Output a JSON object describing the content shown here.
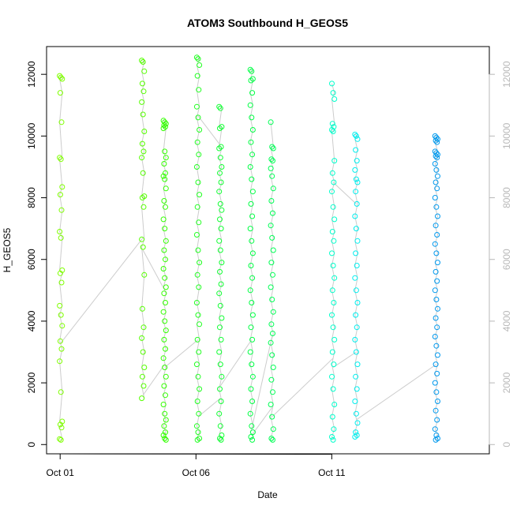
{
  "chart_data": {
    "type": "scatter",
    "title": "ATOM3 Southbound H_GEOS5",
    "xlabel": "Date",
    "ylabel": "H_GEOS5",
    "x_unit": "days since Oct 01",
    "xlim": [
      -0.5,
      15.8
    ],
    "ylim": [
      -300,
      12900
    ],
    "x_ticks": [
      {
        "value": 0,
        "label": "Oct 01"
      },
      {
        "value": 5,
        "label": "Oct 06"
      },
      {
        "value": 10,
        "label": "Oct 11"
      }
    ],
    "y_ticks": [
      {
        "value": 0,
        "label": "0"
      },
      {
        "value": 2000,
        "label": "2000"
      },
      {
        "value": 4000,
        "label": "4000"
      },
      {
        "value": 6000,
        "label": "6000"
      },
      {
        "value": 8000,
        "label": "8000"
      },
      {
        "value": 10000,
        "label": "10000"
      },
      {
        "value": 12000,
        "label": "12000"
      }
    ],
    "right_axis": {
      "color": "#b8b8b8",
      "ticks": [
        0,
        2000,
        4000,
        6000,
        8000,
        10000,
        12000
      ]
    },
    "grid": false,
    "legend": "none",
    "connector_color": "#cccccc",
    "marker": "open-circle",
    "profiles": [
      {
        "x": 0.03,
        "color": "#7fff00",
        "y": [
          11950,
          11900,
          11850,
          11400,
          10450,
          9300,
          9250,
          8350,
          8100,
          7600,
          6900,
          6700,
          5650,
          5550,
          5250,
          4500,
          4200,
          3850,
          3350,
          3100,
          2700,
          1700,
          750,
          650,
          550,
          180,
          150
        ]
      },
      {
        "x": 3.05,
        "color": "#55ff00",
        "y": [
          12450,
          12400,
          12100,
          11700,
          11450,
          11100,
          10700,
          10150,
          9750,
          9500,
          9300,
          8800,
          8050,
          8000,
          7700,
          6650,
          6400,
          5500,
          4400,
          3800,
          3450,
          3000,
          2500,
          2200,
          1900,
          1500
        ]
      },
      {
        "x": 3.85,
        "color": "#33ff00",
        "y": [
          10500,
          10450,
          10400,
          10350,
          10300,
          10250,
          9500,
          9300,
          9100,
          8800,
          8700,
          8600,
          8300,
          7900,
          7700,
          7300,
          7000,
          6600,
          6300,
          6000,
          5700,
          5400,
          5100,
          4900,
          4600,
          4300,
          4000,
          3700,
          3400,
          3100,
          2800,
          2500,
          2200,
          1900,
          1600,
          1300,
          1000,
          800,
          600,
          400,
          300,
          200,
          150
        ]
      },
      {
        "x": 5.08,
        "color": "#22ff22",
        "y": [
          12550,
          12500,
          12300,
          11950,
          11500,
          10950,
          10600,
          10200,
          9800,
          9400,
          9000,
          8500,
          8100,
          7700,
          7200,
          6800,
          6300,
          5900,
          5500,
          5100,
          4600,
          4200,
          3900,
          3400,
          3000,
          2600,
          2200,
          1800,
          1400,
          1000,
          600,
          400,
          200,
          150
        ]
      },
      {
        "x": 5.9,
        "color": "#11ff33",
        "y": [
          10950,
          10900,
          10300,
          10250,
          9650,
          9600,
          9300,
          9000,
          8800,
          8500,
          8200,
          7800,
          7600,
          7300,
          7000,
          6600,
          6300,
          5900,
          5600,
          5200,
          4900,
          4500,
          4100,
          3800,
          3400,
          3000,
          2600,
          2200,
          1800,
          1400,
          1000,
          600,
          300,
          200,
          150
        ]
      },
      {
        "x": 7.05,
        "color": "#00ff44",
        "y": [
          12150,
          12100,
          11850,
          11800,
          11400,
          11000,
          10600,
          10200,
          9800,
          9400,
          9000,
          8600,
          8200,
          7800,
          7400,
          7000,
          6600,
          6200,
          5800,
          5400,
          5000,
          4600,
          4200,
          3800,
          3400,
          3000,
          2600,
          2200,
          1800,
          1400,
          1000,
          600,
          400,
          250,
          150
        ]
      },
      {
        "x": 7.8,
        "color": "#00ff55",
        "y": [
          10450,
          9650,
          9600,
          9250,
          9200,
          8950,
          8700,
          8300,
          7900,
          7500,
          7100,
          6700,
          6300,
          5900,
          5500,
          5100,
          4700,
          4300,
          3900,
          3600,
          3300,
          2900,
          2500,
          2100,
          1700,
          1300,
          900,
          500,
          200,
          150
        ]
      },
      {
        "x": 10.05,
        "color": "#00ffcc",
        "y": [
          11700,
          11400,
          11200,
          10400,
          10300,
          10200,
          10150,
          9200,
          8800,
          8500,
          8200,
          7700,
          7300,
          6900,
          6600,
          6200,
          5800,
          5400,
          5000,
          4600,
          4200,
          3800,
          3400,
          3000,
          2600,
          2200,
          1800,
          1300,
          900,
          500,
          250,
          150
        ]
      },
      {
        "x": 10.9,
        "color": "#00eeee",
        "y": [
          10050,
          10000,
          9900,
          9550,
          9200,
          8900,
          8600,
          8500,
          8200,
          7800,
          7400,
          7000,
          6600,
          6200,
          5800,
          5400,
          5000,
          4600,
          4200,
          3800,
          3400,
          3000,
          2600,
          2200,
          1800,
          1400,
          1000,
          700,
          400,
          300,
          250
        ]
      },
      {
        "x": 13.85,
        "color": "#0099ee",
        "y": [
          10000,
          9950,
          9900,
          9850,
          9800,
          9500,
          9450,
          9400,
          9350,
          9300,
          9100,
          8900,
          8700,
          8500,
          8300,
          8000,
          7700,
          7400,
          7100,
          6800,
          6500,
          6200,
          5900,
          5600,
          5300,
          5000,
          4700,
          4400,
          4100,
          3800,
          3500,
          3200,
          2900,
          2600,
          2300,
          2000,
          1700,
          1400,
          1100,
          800,
          500,
          300,
          200,
          150
        ]
      }
    ],
    "transits": [
      {
        "from": [
          0.03,
          3300
        ],
        "to": [
          3.05,
          6700
        ]
      },
      {
        "from": [
          3.05,
          6300
        ],
        "to": [
          3.85,
          5000
        ]
      },
      {
        "from": [
          3.05,
          1600
        ],
        "to": [
          3.85,
          2600
        ]
      },
      {
        "from": [
          3.85,
          2500
        ],
        "to": [
          5.08,
          3400
        ]
      },
      {
        "from": [
          5.08,
          10650
        ],
        "to": [
          5.9,
          9700
        ]
      },
      {
        "from": [
          5.08,
          900
        ],
        "to": [
          5.9,
          1500
        ]
      },
      {
        "from": [
          5.9,
          1900
        ],
        "to": [
          7.05,
          3400
        ]
      },
      {
        "from": [
          7.05,
          500
        ],
        "to": [
          7.8,
          3500
        ]
      },
      {
        "from": [
          7.05,
          300
        ],
        "to": [
          7.8,
          1200
        ]
      },
      {
        "from": [
          7.8,
          900
        ],
        "to": [
          10.05,
          2800
        ]
      },
      {
        "from": [
          10.05,
          8500
        ],
        "to": [
          10.9,
          7800
        ]
      },
      {
        "from": [
          10.05,
          2500
        ],
        "to": [
          10.9,
          3000
        ]
      },
      {
        "from": [
          10.9,
          800
        ],
        "to": [
          13.85,
          2600
        ]
      }
    ]
  }
}
